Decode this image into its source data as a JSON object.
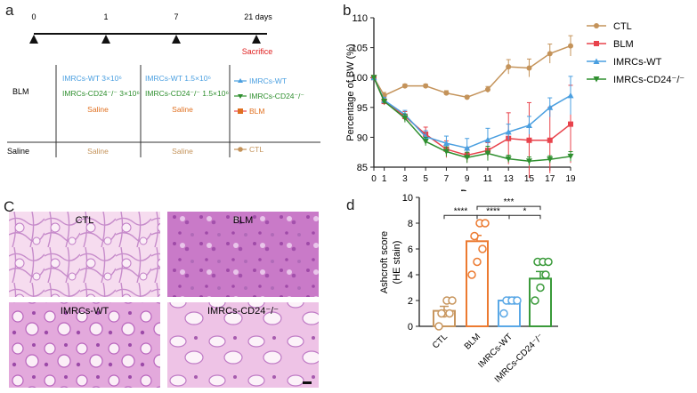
{
  "panels": {
    "a": "a",
    "b": "b",
    "c": "C",
    "d": "d"
  },
  "timeline": {
    "ticks": [
      "0",
      "1",
      "7",
      "21 days"
    ],
    "sacrifice": "Sacrifice",
    "groups": {
      "blm": "BLM",
      "saline": "Saline"
    },
    "day0": {
      "wt": "IMRCs-WT 3×10⁶",
      "cd24": "IMRCs-CD24⁻/⁻ 3×10⁶",
      "saline1": "Saline",
      "saline2": "Saline"
    },
    "day1": {
      "wt": "IMRCs-WT 1.5×10⁶",
      "cd24": "IMRCs-CD24⁻/⁻ 1.5×10⁶",
      "saline1": "Saline",
      "saline2": "Saline"
    },
    "legend": {
      "wt": "IMRCs-WT",
      "cd24": "IMRCs-CD24⁻/⁻",
      "blm": "BLM",
      "ctl": "CTL"
    }
  },
  "colors": {
    "ctl": "#c4935a",
    "blm": "#e8434c",
    "wt": "#4a9fe0",
    "cd24": "#2f8f2f",
    "d_ctl": "#c8965e",
    "d_blm": "#ec7a30",
    "d_wt": "#5aa8e6",
    "d_cd24": "#3a9a3a"
  },
  "chart_data": [
    {
      "type": "line",
      "ylabel": "Percentage of BW (%)",
      "xlabel": "Days",
      "x": [
        0,
        1,
        3,
        5,
        7,
        9,
        11,
        13,
        15,
        17,
        19
      ],
      "xticks": [
        "0",
        "1",
        "3",
        "5",
        "7",
        "9",
        "11",
        "13",
        "15",
        "17",
        "19"
      ],
      "yticks": [
        "85",
        "90",
        "95",
        "100",
        "105",
        "110"
      ],
      "ylim": [
        85,
        110
      ],
      "xlim": [
        0,
        19
      ],
      "legend_position": "top-right",
      "series": [
        {
          "name": "CTL",
          "values": [
            100,
            97,
            98.6,
            98.6,
            97.4,
            96.7,
            98,
            101.8,
            101.6,
            104,
            105.3
          ],
          "err": [
            0.3,
            0.5,
            0.3,
            0.3,
            0.4,
            0.3,
            0.5,
            1.2,
            1.5,
            1.6,
            1.7
          ]
        },
        {
          "name": "BLM",
          "values": [
            100,
            96,
            93.5,
            90.5,
            88,
            87,
            87.8,
            89.8,
            89.5,
            89.5,
            92.2
          ],
          "err": [
            0.3,
            0.6,
            0.8,
            1.2,
            1.4,
            1.2,
            1.3,
            4.3,
            6.3,
            5.5,
            6.5
          ]
        },
        {
          "name": "IMRCs-WT",
          "values": [
            100,
            96.2,
            93.8,
            90.1,
            89,
            88.2,
            89.6,
            90.9,
            92,
            95,
            97
          ],
          "err": [
            0.3,
            0.5,
            0.7,
            1,
            1.2,
            1.6,
            1.9,
            1.3,
            1.5,
            1.6,
            3.2
          ]
        },
        {
          "name": "IMRCs-CD24⁻/⁻",
          "values": [
            100,
            96,
            93.2,
            89.3,
            87.6,
            86.6,
            87.3,
            86.4,
            86,
            86.3,
            86.8
          ],
          "err": [
            0.3,
            0.4,
            0.7,
            0.7,
            0.8,
            0.9,
            1.2,
            0.6,
            0.7,
            0.6,
            0.8
          ]
        }
      ]
    },
    {
      "type": "bar",
      "ylabel": "Ashcroft score",
      "ylabel2": "(HE stain)",
      "categories": [
        "CTL",
        "BLM",
        "IMRCs-WT",
        "IMRCs-CD24⁻/⁻"
      ],
      "values": [
        1.2,
        6.6,
        2.0,
        3.7
      ],
      "err": [
        0.35,
        0.45,
        0.25,
        0.55
      ],
      "points": [
        [
          0,
          1,
          1,
          1,
          2,
          2
        ],
        [
          4,
          5,
          6,
          7,
          8,
          8
        ],
        [
          1,
          2,
          2,
          2,
          2,
          2
        ],
        [
          2,
          3,
          4,
          5,
          5,
          5
        ]
      ],
      "ylim": [
        0,
        10
      ],
      "yticks": [
        "0",
        "2",
        "4",
        "6",
        "8",
        "10"
      ],
      "significance": [
        {
          "from": 0,
          "to": 1,
          "label": "****",
          "level": 8.6
        },
        {
          "from": 1,
          "to": 2,
          "label": "****",
          "level": 8.6
        },
        {
          "from": 2,
          "to": 3,
          "label": "*",
          "level": 8.6
        },
        {
          "from": 1,
          "to": 3,
          "label": "***",
          "level": 9.3
        }
      ]
    }
  ],
  "micrographs": {
    "ctl": "CTL",
    "blm": "BLM",
    "wt": "IMRCs-WT",
    "cd24": "IMRCs-CD24⁻/⁻"
  }
}
